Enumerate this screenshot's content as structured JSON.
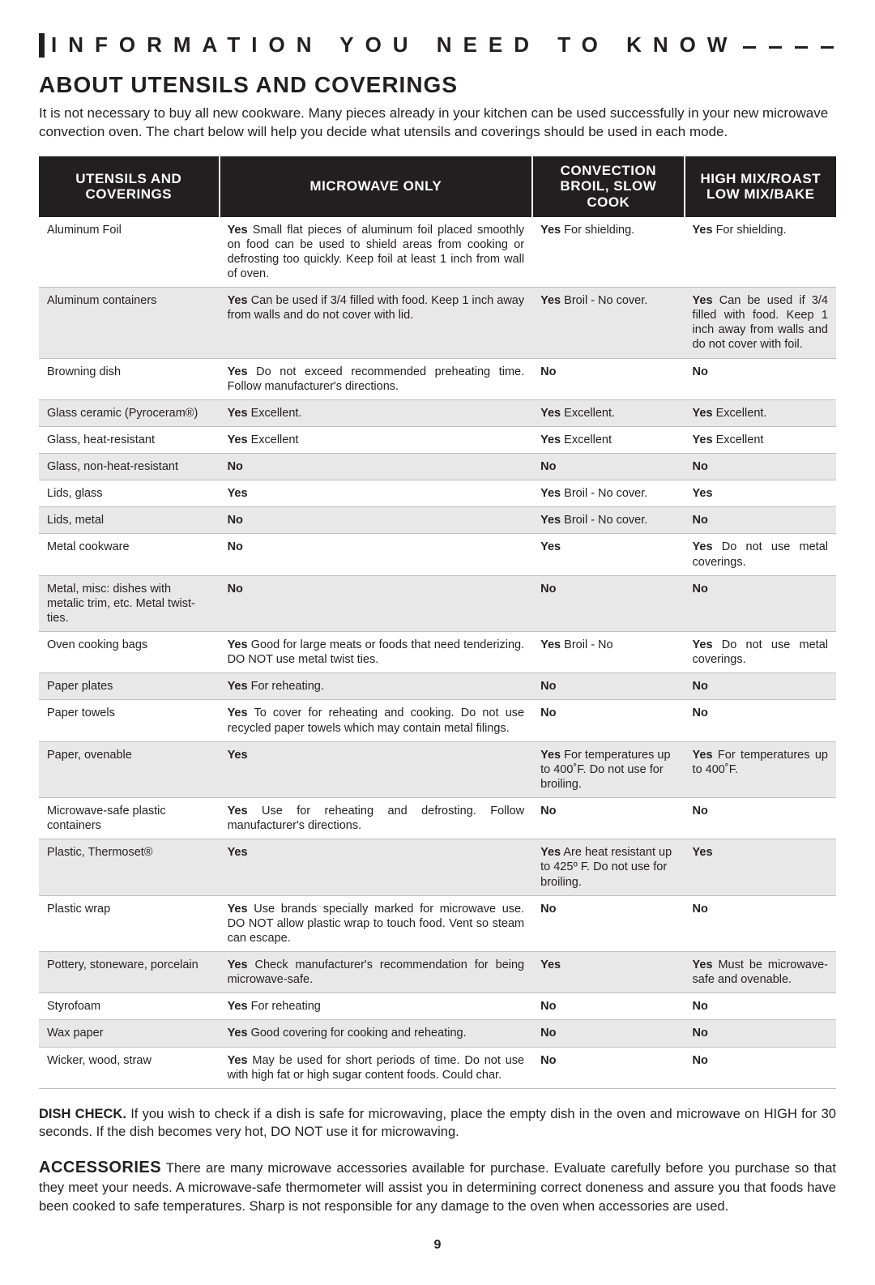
{
  "header": {
    "title": "INFORMATION YOU NEED TO KNOW"
  },
  "mainTitle": "ABOUT UTENSILS AND COVERINGS",
  "intro": "It is not necessary to buy all new cookware. Many pieces already in your kitchen can be used successfully in your new microwave convection oven. The chart below will help you decide what utensils and coverings should be used in each mode.",
  "columns": [
    "UTENSILS AND COVERINGS",
    "MICROWAVE ONLY",
    "CONVECTION BROIL, SLOW COOK",
    "HIGH MIX/ROAST LOW MIX/BAKE"
  ],
  "rows": [
    {
      "utensil": "Aluminum Foil",
      "micro": {
        "yn": "Yes",
        "txt": "Small flat pieces of aluminum foil placed smoothly on food can be used to shield areas from cooking or defrosting too quickly. Keep foil at least 1 inch from wall of oven."
      },
      "conv": {
        "yn": "Yes",
        "txt": "For shielding."
      },
      "mix": {
        "yn": "Yes",
        "txt": "For shielding."
      }
    },
    {
      "utensil": "Aluminum containers",
      "micro": {
        "yn": "Yes",
        "txt": "Can be used if 3/4 filled with food. Keep 1 inch away from walls and do not cover  with lid."
      },
      "conv": {
        "yn": "Yes",
        "txt": "Broil - No cover."
      },
      "mix": {
        "yn": "Yes",
        "txt": "Can be used if 3/4 filled with food. Keep 1 inch away from walls and do not cover with foil."
      }
    },
    {
      "utensil": "Browning dish",
      "micro": {
        "yn": "Yes",
        "txt": "Do not exceed recommended preheating time. Follow manufacturer's directions."
      },
      "conv": {
        "yn": "No",
        "txt": ""
      },
      "mix": {
        "yn": "No",
        "txt": ""
      }
    },
    {
      "utensil": "Glass ceramic (Pyroceram®)",
      "micro": {
        "yn": "Yes",
        "txt": "Excellent."
      },
      "conv": {
        "yn": "Yes",
        "txt": "Excellent."
      },
      "mix": {
        "yn": "Yes",
        "txt": "Excellent."
      }
    },
    {
      "utensil": "Glass, heat-resistant",
      "micro": {
        "yn": "Yes",
        "txt": "Excellent"
      },
      "conv": {
        "yn": "Yes",
        "txt": "Excellent"
      },
      "mix": {
        "yn": "Yes",
        "txt": "Excellent"
      }
    },
    {
      "utensil": "Glass, non-heat-resistant",
      "micro": {
        "yn": "No",
        "txt": ""
      },
      "conv": {
        "yn": "No",
        "txt": ""
      },
      "mix": {
        "yn": "No",
        "txt": ""
      }
    },
    {
      "utensil": "Lids, glass",
      "micro": {
        "yn": "Yes",
        "txt": ""
      },
      "conv": {
        "yn": "Yes",
        "txt": "Broil - No cover."
      },
      "mix": {
        "yn": "Yes",
        "txt": ""
      }
    },
    {
      "utensil": "Lids, metal",
      "micro": {
        "yn": "No",
        "txt": ""
      },
      "conv": {
        "yn": "Yes",
        "txt": "Broil - No cover."
      },
      "mix": {
        "yn": "No",
        "txt": ""
      }
    },
    {
      "utensil": "Metal cookware",
      "micro": {
        "yn": "No",
        "txt": ""
      },
      "conv": {
        "yn": "Yes",
        "txt": ""
      },
      "mix": {
        "yn": "Yes",
        "txt": "Do not use metal coverings."
      }
    },
    {
      "utensil": "Metal, misc: dishes with metalic trim, etc. Metal twist-ties.",
      "micro": {
        "yn": "No",
        "txt": ""
      },
      "conv": {
        "yn": "No",
        "txt": ""
      },
      "mix": {
        "yn": "No",
        "txt": ""
      }
    },
    {
      "utensil": "Oven cooking bags",
      "micro": {
        "yn": "Yes",
        "txt": "Good for large meats or foods that need tenderizing. DO NOT use metal twist ties."
      },
      "conv": {
        "yn": "Yes",
        "txt": "Broil - No"
      },
      "mix": {
        "yn": "Yes",
        "txt": "Do not use metal coverings."
      }
    },
    {
      "utensil": "Paper plates",
      "micro": {
        "yn": "Yes",
        "txt": "For reheating."
      },
      "conv": {
        "yn": "No",
        "txt": ""
      },
      "mix": {
        "yn": "No",
        "txt": ""
      }
    },
    {
      "utensil": "Paper towels",
      "micro": {
        "yn": "Yes",
        "txt": "To cover for reheating and cooking. Do not use recycled paper towels which may contain metal filings."
      },
      "conv": {
        "yn": "No",
        "txt": ""
      },
      "mix": {
        "yn": "No",
        "txt": ""
      }
    },
    {
      "utensil": "Paper, ovenable",
      "micro": {
        "yn": "Yes",
        "txt": ""
      },
      "conv": {
        "yn": "Yes",
        "txt": "For temperatures up to 400˚F. Do not use for broiling."
      },
      "mix": {
        "yn": "Yes",
        "txt": "For temperatures up to 400˚F."
      }
    },
    {
      "utensil": "Microwave-safe plastic containers",
      "micro": {
        "yn": "Yes",
        "txt": "Use for reheating and defrosting. Follow manufacturer's directions."
      },
      "conv": {
        "yn": "No",
        "txt": ""
      },
      "mix": {
        "yn": "No",
        "txt": ""
      }
    },
    {
      "utensil": "Plastic, Thermoset®",
      "micro": {
        "yn": "Yes",
        "txt": ""
      },
      "conv": {
        "yn": "Yes",
        "txt": "Are heat resistant up to 425º F. Do not use for broiling."
      },
      "mix": {
        "yn": "Yes",
        "txt": ""
      }
    },
    {
      "utensil": "Plastic wrap",
      "micro": {
        "yn": "Yes",
        "txt": "Use brands specially marked for microwave use. DO NOT allow plastic wrap to touch food. Vent so steam can escape."
      },
      "conv": {
        "yn": "No",
        "txt": ""
      },
      "mix": {
        "yn": "No",
        "txt": ""
      }
    },
    {
      "utensil": "Pottery, stoneware, porcelain",
      "micro": {
        "yn": "Yes",
        "txt": "Check manufacturer's recommendation for being microwave-safe."
      },
      "conv": {
        "yn": "Yes",
        "txt": ""
      },
      "mix": {
        "yn": "Yes",
        "txt": "Must be microwave-safe and ovenable."
      }
    },
    {
      "utensil": "Styrofoam",
      "micro": {
        "yn": "Yes",
        "txt": "For reheating"
      },
      "conv": {
        "yn": "No",
        "txt": ""
      },
      "mix": {
        "yn": "No",
        "txt": ""
      }
    },
    {
      "utensil": "Wax paper",
      "micro": {
        "yn": "Yes",
        "txt": " Good covering for cooking and reheating."
      },
      "conv": {
        "yn": "No",
        "txt": ""
      },
      "mix": {
        "yn": "No",
        "txt": ""
      }
    },
    {
      "utensil": "Wicker, wood, straw",
      "micro": {
        "yn": "Yes",
        "txt": "May be used for short periods of time. Do not use with high fat or high sugar content foods. Could char."
      },
      "conv": {
        "yn": "No",
        "txt": ""
      },
      "mix": {
        "yn": "No",
        "txt": ""
      }
    }
  ],
  "dishCheck": {
    "lead": "DISH CHECK.",
    "text": " If you wish to check if a dish is safe for microwaving, place the empty dish in the oven and microwave on HIGH for 30 seconds. If the dish becomes very hot, DO NOT use it for microwaving."
  },
  "accessories": {
    "lead": "ACCESSORIES",
    "text": " There are many microwave accessories available for purchase. Evaluate carefully before you purchase so that they meet your needs. A microwave-safe thermometer will assist you in determining correct doneness and assure you that foods have been cooked to safe temperatures. Sharp is not responsible for any damage to the oven when accessories are used."
  },
  "pageNumber": "9",
  "colors": {
    "headerBg": "#231f20",
    "headerFg": "#ffffff",
    "rowEven": "#e8e8e9",
    "rowOdd": "#ffffff",
    "rowBorder": "#bfbfbf"
  }
}
